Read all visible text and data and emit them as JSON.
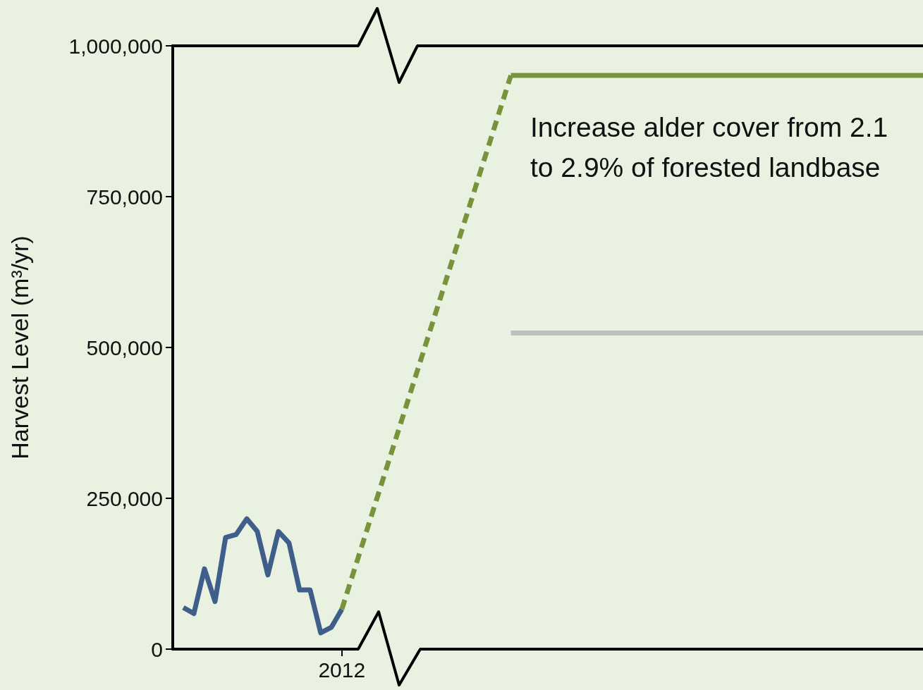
{
  "chart_data": {
    "type": "line",
    "ylabel": "Harvest Level (m³/yr)",
    "categories": [
      null,
      null,
      null,
      null,
      null,
      null,
      null,
      null,
      null,
      null,
      null,
      null,
      null,
      null,
      null,
      null,
      "2012",
      null,
      null,
      null,
      null,
      null,
      null,
      null,
      null,
      null,
      null,
      null,
      null,
      null,
      null,
      null,
      null,
      null,
      null,
      null,
      null,
      null,
      null,
      null,
      null,
      null,
      null,
      null,
      null,
      null,
      null,
      null,
      null,
      null,
      null,
      null,
      null,
      null,
      null,
      null,
      null,
      null,
      null,
      null,
      null,
      null,
      null,
      null,
      null,
      null,
      null,
      null,
      null,
      null,
      null,
      null
    ],
    "ylim": [
      0,
      1000000
    ],
    "yticks": [
      {
        "value": 0,
        "label": "0"
      },
      {
        "value": 250000,
        "label": "250,000"
      },
      {
        "value": 500000,
        "label": "500,000"
      },
      {
        "value": 750000,
        "label": "750,000"
      },
      {
        "value": 1000000,
        "label": "1,000,000"
      }
    ],
    "grid": false,
    "marker": "none",
    "annotations": [
      "Increase alder cover from 2.1 to 2.9% of forested landbase"
    ],
    "series": [
      {
        "color": "#3f5f8a",
        "line_style": "solid",
        "values": [
          null,
          69000,
          59000,
          133000,
          79000,
          185000,
          190000,
          216000,
          195000,
          123000,
          195000,
          176000,
          98000,
          98000,
          27000,
          36000,
          66000,
          null,
          null,
          null,
          null,
          null,
          null,
          null,
          null,
          null,
          null,
          null,
          null,
          null,
          null,
          null,
          null,
          null,
          null,
          null,
          null,
          null,
          null,
          null,
          null,
          null,
          null,
          null,
          null,
          null,
          null,
          null,
          null,
          null,
          null,
          null,
          null,
          null,
          null,
          null,
          null,
          null,
          null,
          null,
          null,
          null,
          null,
          null,
          null,
          null,
          null,
          null,
          null,
          null,
          null,
          null
        ]
      },
      {
        "color": "#77933c",
        "line_style": "dashed",
        "values": [
          null,
          null,
          null,
          null,
          null,
          null,
          null,
          null,
          null,
          null,
          null,
          null,
          null,
          null,
          null,
          null,
          66000,
          null,
          null,
          null,
          null,
          null,
          null,
          null,
          null,
          null,
          null,
          null,
          null,
          null,
          null,
          null,
          951000,
          null,
          null,
          null,
          null,
          null,
          null,
          null,
          null,
          null,
          null,
          null,
          null,
          null,
          null,
          null,
          null,
          null,
          null,
          null,
          null,
          null,
          null,
          null,
          null,
          null,
          null,
          null,
          null,
          null,
          null,
          null,
          null,
          null,
          null,
          null,
          null,
          null,
          null,
          null
        ]
      },
      {
        "color": "#77933c",
        "line_style": "solid",
        "values": [
          null,
          null,
          null,
          null,
          null,
          null,
          null,
          null,
          null,
          null,
          null,
          null,
          null,
          null,
          null,
          null,
          null,
          null,
          null,
          null,
          null,
          null,
          null,
          null,
          null,
          null,
          null,
          null,
          null,
          null,
          null,
          null,
          951000,
          951000,
          951000,
          951000,
          951000,
          951000,
          951000,
          951000,
          951000,
          951000,
          951000,
          951000,
          951000,
          951000,
          951000,
          951000,
          951000,
          951000,
          951000,
          951000,
          951000,
          951000,
          951000,
          951000,
          951000,
          951000,
          951000,
          951000,
          951000,
          951000,
          951000,
          951000,
          951000,
          951000,
          951000,
          951000,
          951000,
          951000,
          951000,
          951000
        ]
      },
      {
        "color": "#bfbfbf",
        "line_style": "solid",
        "values": [
          null,
          null,
          null,
          null,
          null,
          null,
          null,
          null,
          null,
          null,
          null,
          null,
          null,
          null,
          null,
          null,
          null,
          null,
          null,
          null,
          null,
          null,
          null,
          null,
          null,
          null,
          null,
          null,
          null,
          null,
          null,
          null,
          524000,
          524000,
          524000,
          524000,
          524000,
          524000,
          524000,
          524000,
          524000,
          524000,
          524000,
          524000,
          524000,
          524000,
          524000,
          524000,
          524000,
          524000,
          524000,
          524000,
          524000,
          524000,
          524000,
          524000,
          524000,
          524000,
          524000,
          524000,
          524000,
          524000,
          524000,
          524000,
          524000,
          524000,
          524000,
          524000,
          524000,
          524000,
          524000,
          524000
        ]
      }
    ]
  }
}
